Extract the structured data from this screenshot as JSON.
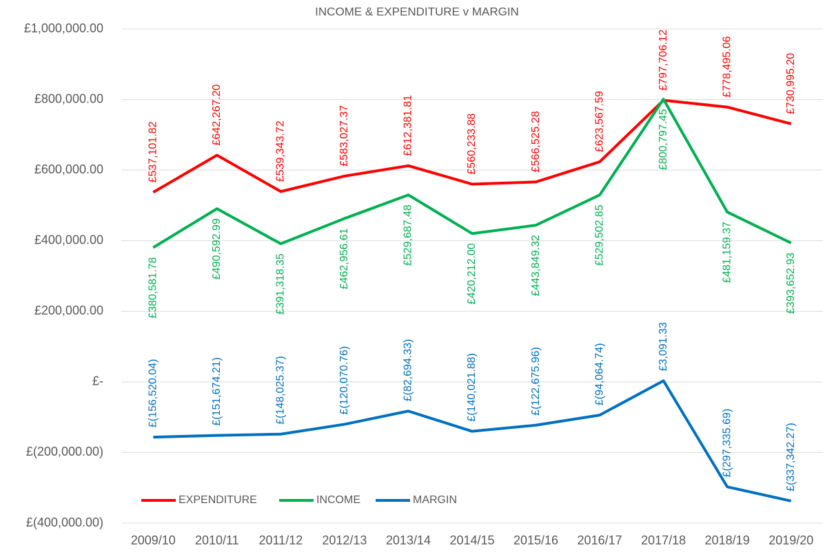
{
  "chart_data": {
    "type": "line",
    "title": "INCOME & EXPENDITURE v MARGIN",
    "categories": [
      "2009/10",
      "2010/11",
      "2011/12",
      "2012/13",
      "2013/14",
      "2014/15",
      "2015/16",
      "2016/17",
      "2017/18",
      "2018/19",
      "2019/20"
    ],
    "series": [
      {
        "name": "EXPENDITURE",
        "color": "#ff0000",
        "values": [
          537101.82,
          642267.2,
          539343.72,
          583027.37,
          612381.81,
          560233.88,
          566525.28,
          623567.59,
          797706.12,
          778495.06,
          730995.2
        ],
        "value_labels": [
          "£537,101.82",
          "£642,267.20",
          "£539,343.72",
          "£583,027.37",
          "£612,381.81",
          "£560,233.88",
          "£566,525.28",
          "£623,567.59",
          "£797,706.12",
          "£778,495.06",
          "£730,995.20"
        ]
      },
      {
        "name": "INCOME",
        "color": "#00b050",
        "values": [
          380581.78,
          490592.99,
          391318.35,
          462956.61,
          529687.48,
          420212.0,
          443849.32,
          529502.85,
          800797.45,
          481159.37,
          393652.93
        ],
        "value_labels": [
          "£380,581.78",
          "£490,592.99",
          "£391,318.35",
          "£462,956.61",
          "£529,687.48",
          "£420,212.00",
          "£443,849.32",
          "£529,502.85",
          "£800,797.45",
          "£481,159.37",
          "£393,652.93"
        ]
      },
      {
        "name": "MARGIN",
        "color": "#0070c0",
        "values": [
          -156520.04,
          -151674.21,
          -148025.37,
          -120070.76,
          -82694.33,
          -140021.88,
          -122675.96,
          -94064.74,
          3091.33,
          -297335.69,
          -337342.27
        ],
        "value_labels": [
          "£(156,520.04)",
          "£(151,674.21)",
          "£(148,025.37)",
          "£(120,070.76)",
          "£(82,694.33)",
          "£(140,021.88)",
          "£(122,675.96)",
          "£(94,064.74)",
          "£3,091.33",
          "£(297,335.69)",
          "£(337,342.27)"
        ]
      }
    ],
    "ylim": [
      -400000,
      1000000
    ],
    "yticks": [
      {
        "value": -400000,
        "label": "£(400,000.00)"
      },
      {
        "value": -200000,
        "label": "£(200,000.00)"
      },
      {
        "value": 0,
        "label": "£-"
      },
      {
        "value": 200000,
        "label": "£200,000.00"
      },
      {
        "value": 400000,
        "label": "£400,000.00"
      },
      {
        "value": 600000,
        "label": "£600,000.00"
      },
      {
        "value": 800000,
        "label": "£800,000.00"
      },
      {
        "value": 1000000,
        "label": "£1,000,000.00"
      }
    ],
    "grid": true,
    "legend": "lower left"
  }
}
